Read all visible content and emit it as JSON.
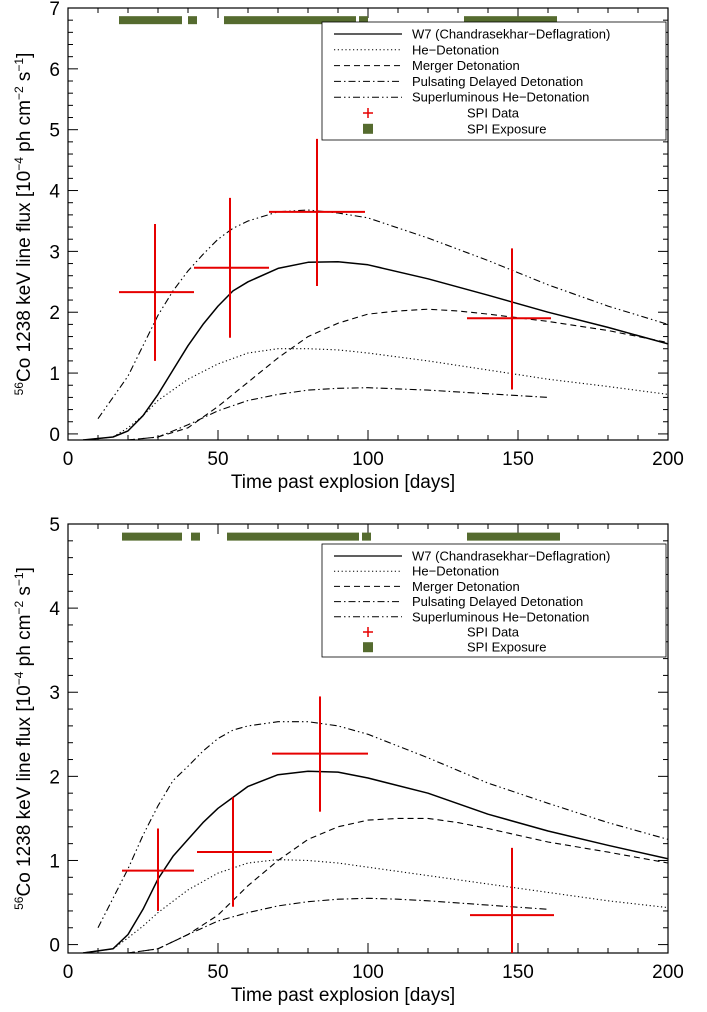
{
  "chart_data": [
    {
      "type": "line",
      "xlabel": "Time past explosion [days]",
      "ylabel_pre": "56",
      "ylabel_mid": "Co 1238 keV line flux [10",
      "ylabel_exp1": "−4",
      "ylabel_mid2": " ph cm",
      "ylabel_exp2": "−2",
      "ylabel_mid3": " s",
      "ylabel_exp3": "−1",
      "ylabel_end": "]",
      "xlim": [
        0,
        200
      ],
      "ylim": [
        -0.1,
        7
      ],
      "xticks": [
        0,
        50,
        100,
        150,
        200
      ],
      "xtick_labels": [
        "0",
        "50",
        "100",
        "150",
        "200"
      ],
      "yticks": [
        0,
        1,
        2,
        3,
        4,
        5,
        6,
        7
      ],
      "ytick_labels": [
        "0",
        "1",
        "2",
        "3",
        "4",
        "5",
        "6",
        "7"
      ],
      "legend_position": "top-right",
      "series": [
        {
          "name": "W7 (Chandrasekhar−Deflagration)",
          "style": "solid",
          "x": [
            5,
            15,
            20,
            25,
            30,
            35,
            40,
            45,
            50,
            55,
            60,
            70,
            80,
            90,
            100,
            120,
            140,
            160,
            180,
            200
          ],
          "y": [
            -0.1,
            -0.05,
            0.05,
            0.3,
            0.65,
            1.05,
            1.45,
            1.8,
            2.1,
            2.35,
            2.5,
            2.72,
            2.82,
            2.83,
            2.78,
            2.55,
            2.28,
            2.0,
            1.75,
            1.48
          ]
        },
        {
          "name": "He−Detonation",
          "style": "dotted",
          "x": [
            5,
            15,
            20,
            25,
            30,
            40,
            50,
            60,
            70,
            80,
            90,
            100,
            120,
            140,
            160,
            180,
            200
          ],
          "y": [
            -0.1,
            -0.05,
            0.1,
            0.3,
            0.55,
            0.9,
            1.15,
            1.33,
            1.4,
            1.4,
            1.38,
            1.33,
            1.2,
            1.05,
            0.9,
            0.78,
            0.65
          ]
        },
        {
          "name": "Merger Detonation",
          "style": "dashed",
          "x": [
            20,
            30,
            40,
            50,
            60,
            70,
            80,
            90,
            100,
            110,
            120,
            130,
            140,
            160,
            180,
            200
          ],
          "y": [
            -0.1,
            -0.05,
            0.1,
            0.45,
            0.85,
            1.25,
            1.6,
            1.82,
            1.97,
            2.02,
            2.05,
            2.02,
            1.97,
            1.85,
            1.7,
            1.5
          ]
        },
        {
          "name": "Pulsating Delayed Detonation",
          "style": "dashdot",
          "x": [
            20,
            30,
            40,
            50,
            60,
            70,
            80,
            90,
            100,
            110,
            120,
            140,
            160
          ],
          "y": [
            -0.1,
            -0.05,
            0.15,
            0.38,
            0.55,
            0.65,
            0.72,
            0.75,
            0.76,
            0.74,
            0.72,
            0.66,
            0.6
          ]
        },
        {
          "name": "Superluminous He−Detonation",
          "style": "dashdotdot",
          "x": [
            10,
            15,
            20,
            25,
            30,
            35,
            40,
            45,
            50,
            55,
            60,
            70,
            80,
            90,
            100,
            120,
            140,
            160,
            180,
            200
          ],
          "y": [
            0.25,
            0.6,
            0.95,
            1.45,
            1.95,
            2.35,
            2.68,
            2.95,
            3.2,
            3.38,
            3.5,
            3.65,
            3.68,
            3.63,
            3.55,
            3.22,
            2.85,
            2.45,
            2.1,
            1.8
          ]
        }
      ],
      "spi_data": {
        "name": "SPI Data",
        "color": "#e60000",
        "points": [
          {
            "x": 29,
            "xmin": 17,
            "xmax": 42,
            "y": 2.33,
            "ymin": 1.2,
            "ymax": 3.45
          },
          {
            "x": 54,
            "xmin": 42,
            "xmax": 67,
            "y": 2.73,
            "ymin": 1.58,
            "ymax": 3.88
          },
          {
            "x": 83,
            "xmin": 67,
            "xmax": 99,
            "y": 3.65,
            "ymin": 2.43,
            "ymax": 4.85
          },
          {
            "x": 148,
            "xmin": 133,
            "xmax": 161,
            "y": 1.9,
            "ymin": 0.73,
            "ymax": 3.05
          }
        ]
      },
      "spi_exposure": {
        "name": "SPI Exposure",
        "color": "#556b2f",
        "y": 6.8,
        "intervals": [
          [
            17,
            38
          ],
          [
            40,
            43
          ],
          [
            52,
            96
          ],
          [
            97,
            100
          ],
          [
            132,
            163
          ]
        ]
      }
    },
    {
      "type": "line",
      "xlabel": "Time past explosion [days]",
      "ylabel_pre": "56",
      "ylabel_mid": "Co 1238 keV line flux [10",
      "ylabel_exp1": "−4",
      "ylabel_mid2": " ph cm",
      "ylabel_exp2": "−2",
      "ylabel_mid3": " s",
      "ylabel_exp3": "−1",
      "ylabel_end": "]",
      "xlim": [
        0,
        200
      ],
      "ylim": [
        -0.1,
        5
      ],
      "xticks": [
        0,
        50,
        100,
        150,
        200
      ],
      "xtick_labels": [
        "0",
        "50",
        "100",
        "150",
        "200"
      ],
      "yticks": [
        0,
        1,
        2,
        3,
        4,
        5
      ],
      "ytick_labels": [
        "0",
        "1",
        "2",
        "3",
        "4",
        "5"
      ],
      "legend_position": "top-right",
      "series": [
        {
          "name": "W7 (Chandrasekhar−Deflagration)",
          "style": "solid",
          "x": [
            5,
            15,
            20,
            25,
            30,
            35,
            40,
            45,
            50,
            55,
            60,
            70,
            80,
            90,
            100,
            120,
            140,
            160,
            180,
            200
          ],
          "y": [
            -0.1,
            -0.05,
            0.12,
            0.42,
            0.78,
            1.05,
            1.25,
            1.45,
            1.62,
            1.75,
            1.88,
            2.02,
            2.06,
            2.05,
            1.98,
            1.8,
            1.55,
            1.35,
            1.18,
            1.02
          ]
        },
        {
          "name": "He−Detonation",
          "style": "dotted",
          "x": [
            5,
            15,
            20,
            25,
            30,
            40,
            50,
            60,
            70,
            80,
            90,
            100,
            120,
            140,
            160,
            180,
            200
          ],
          "y": [
            -0.1,
            -0.05,
            0.08,
            0.22,
            0.38,
            0.65,
            0.85,
            0.97,
            1.01,
            1.0,
            0.97,
            0.92,
            0.82,
            0.72,
            0.62,
            0.52,
            0.44
          ]
        },
        {
          "name": "Merger Detonation",
          "style": "dashed",
          "x": [
            20,
            30,
            40,
            50,
            60,
            70,
            80,
            90,
            100,
            110,
            120,
            130,
            140,
            160,
            180,
            200
          ],
          "y": [
            -0.1,
            -0.05,
            0.12,
            0.35,
            0.7,
            1.0,
            1.25,
            1.4,
            1.48,
            1.5,
            1.5,
            1.45,
            1.38,
            1.22,
            1.1,
            0.97
          ]
        },
        {
          "name": "Pulsating Delayed Detonation",
          "style": "dashdot",
          "x": [
            20,
            30,
            40,
            50,
            60,
            70,
            80,
            90,
            100,
            110,
            120,
            140,
            160
          ],
          "y": [
            -0.1,
            -0.05,
            0.12,
            0.28,
            0.38,
            0.46,
            0.51,
            0.54,
            0.55,
            0.54,
            0.52,
            0.47,
            0.42
          ]
        },
        {
          "name": "Superluminous He−Detonation",
          "style": "dashdotdot",
          "x": [
            10,
            15,
            20,
            25,
            30,
            35,
            40,
            45,
            50,
            55,
            60,
            70,
            80,
            90,
            100,
            120,
            140,
            160,
            180,
            200
          ],
          "y": [
            0.2,
            0.55,
            0.9,
            1.3,
            1.65,
            1.95,
            2.12,
            2.3,
            2.45,
            2.55,
            2.6,
            2.65,
            2.65,
            2.6,
            2.5,
            2.22,
            1.92,
            1.68,
            1.45,
            1.25
          ]
        }
      ],
      "spi_data": {
        "name": "SPI Data",
        "color": "#e60000",
        "points": [
          {
            "x": 30,
            "xmin": 18,
            "xmax": 42,
            "y": 0.88,
            "ymin": 0.4,
            "ymax": 1.38
          },
          {
            "x": 55,
            "xmin": 43,
            "xmax": 68,
            "y": 1.1,
            "ymin": 0.45,
            "ymax": 1.75
          },
          {
            "x": 84,
            "xmin": 68,
            "xmax": 100,
            "y": 2.27,
            "ymin": 1.58,
            "ymax": 2.95
          },
          {
            "x": 148,
            "xmin": 134,
            "xmax": 162,
            "y": 0.35,
            "ymin": -0.1,
            "ymax": 1.15
          }
        ]
      },
      "spi_exposure": {
        "name": "SPI Exposure",
        "color": "#556b2f",
        "y": 4.85,
        "intervals": [
          [
            18,
            38
          ],
          [
            41,
            44
          ],
          [
            53,
            97
          ],
          [
            98,
            101
          ],
          [
            133,
            164
          ]
        ]
      }
    }
  ]
}
